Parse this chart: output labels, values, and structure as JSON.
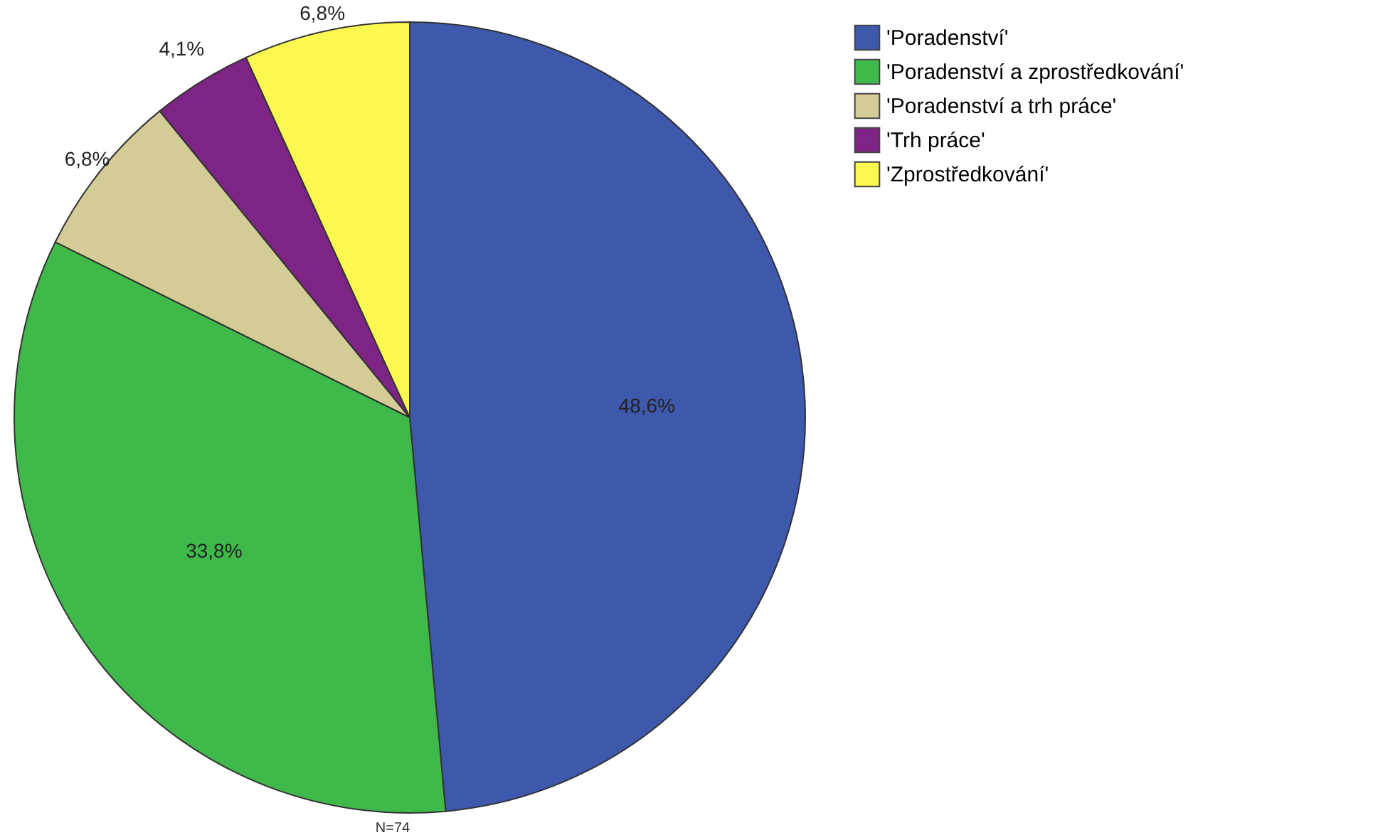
{
  "chart_data": {
    "type": "pie",
    "categories": [
      "'Poradenství'",
      "'Poradenství a zprostředkování'",
      "'Poradenství a trh práce'",
      "'Trh práce'",
      "'Zprostředkování'"
    ],
    "values": [
      48.6,
      33.8,
      6.8,
      4.1,
      6.8
    ],
    "colors": [
      "#3e58ac",
      "#3eb94a",
      "#d4cc96",
      "#7e2485",
      "#fbf94f"
    ],
    "value_labels": [
      "48,6%",
      "33,8%",
      "6,8%",
      "4,1%",
      "6,8%"
    ],
    "legend": "top right",
    "annotations": [
      "N=74"
    ]
  }
}
